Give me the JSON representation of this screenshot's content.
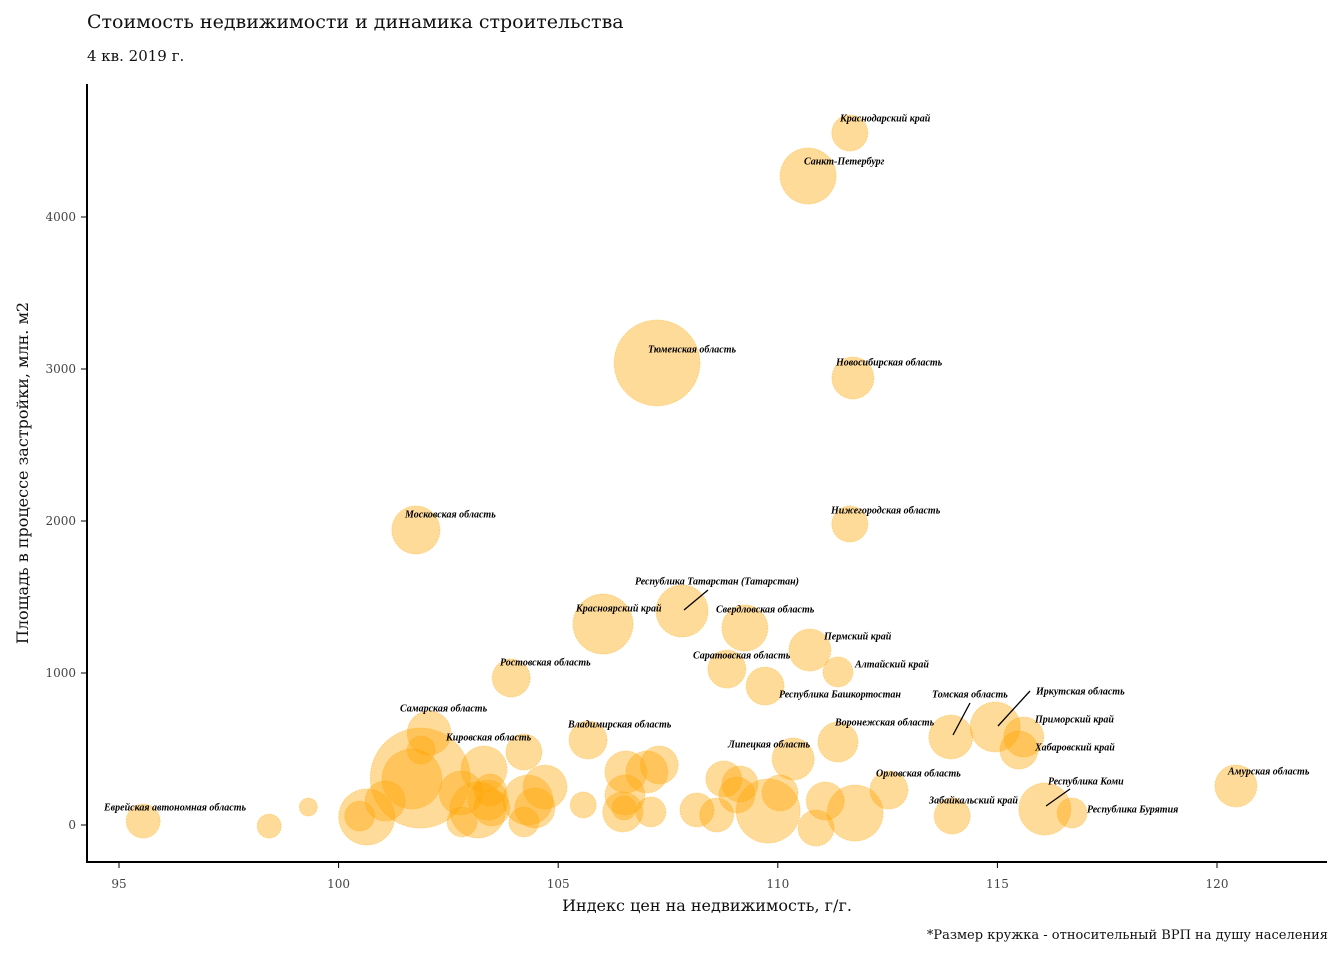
{
  "title": "Стоимость недвижимости и динамика строительства",
  "subtitle": "4 кв. 2019 г.",
  "note": "*Размер кружка - относительный ВРП на душу населения",
  "colors": {
    "bubble": "#FFA500",
    "axis": "#000000"
  },
  "chart_data": {
    "type": "scatter",
    "xlabel": "Индекс цен на недвижимость, г/г.",
    "ylabel": "Площадь в процессе застройки, млн. м2",
    "xlim": [
      94.3,
      122.5
    ],
    "ylim": [
      -250,
      4850
    ],
    "xticks": [
      95,
      100,
      105,
      110,
      115,
      120
    ],
    "yticks": [
      0,
      1000,
      2000,
      3000,
      4000
    ],
    "grid": false,
    "size_meaning": "relative GRP per capita",
    "points": [
      {
        "name": "Краснодарский край",
        "x": 111.64,
        "y": 4553,
        "size": 0.81
      },
      {
        "name": "Санкт-Петербург",
        "x": 110.69,
        "y": 4270,
        "size": 1.96
      },
      {
        "name": "Тюменская область",
        "x": 107.25,
        "y": 3040,
        "size": 4.6
      },
      {
        "name": "Новосибирская область",
        "x": 111.71,
        "y": 2941,
        "size": 1.1
      },
      {
        "name": "Московская область",
        "x": 101.76,
        "y": 1941,
        "size": 1.44
      },
      {
        "name": "Нижегородская область",
        "x": 111.64,
        "y": 1980,
        "size": 0.81
      },
      {
        "name": "Республика Татарстан (Татарстан)",
        "x": 107.82,
        "y": 1408,
        "size": 1.69
      },
      {
        "name": "Красноярский край",
        "x": 106.02,
        "y": 1322,
        "size": 2.25
      },
      {
        "name": "Свердловская область",
        "x": 109.25,
        "y": 1296,
        "size": 1.32
      },
      {
        "name": "Пермский край",
        "x": 110.73,
        "y": 1151,
        "size": 1.1
      },
      {
        "name": "Алтайский край",
        "x": 111.37,
        "y": 1007,
        "size": 0.56
      },
      {
        "name": "Саратовская область",
        "x": 108.84,
        "y": 1026,
        "size": 0.9
      },
      {
        "name": "Республика Башкортостан",
        "x": 109.71,
        "y": 914,
        "size": 0.9
      },
      {
        "name": "Ростовская область",
        "x": 103.93,
        "y": 967,
        "size": 0.9
      },
      {
        "name": "Самарская область",
        "x": 102.06,
        "y": 605,
        "size": 1.2
      },
      {
        "name": "Кировская область",
        "x": 104.22,
        "y": 480,
        "size": 0.81
      },
      {
        "name": "Владимирская область",
        "x": 105.68,
        "y": 559,
        "size": 0.9
      },
      {
        "name": "Липецкая область",
        "x": 110.35,
        "y": 434,
        "size": 1.1
      },
      {
        "name": "Воронежская область",
        "x": 111.37,
        "y": 546,
        "size": 1.0
      },
      {
        "name": "Томская область",
        "x": 113.94,
        "y": 579,
        "size": 1.2
      },
      {
        "name": "Иркутская область",
        "x": 114.95,
        "y": 645,
        "size": 1.56
      },
      {
        "name": "Приморский край",
        "x": 115.6,
        "y": 579,
        "size": 1.0
      },
      {
        "name": "Хабаровский край",
        "x": 115.49,
        "y": 493,
        "size": 0.9
      },
      {
        "name": "Амурская область",
        "x": 120.43,
        "y": 257,
        "size": 1.1
      },
      {
        "name": "Орловская область",
        "x": 112.53,
        "y": 230,
        "size": 0.9
      },
      {
        "name": "Забайкальский край",
        "x": 113.97,
        "y": 59,
        "size": 0.81
      },
      {
        "name": "Республика Коми",
        "x": 116.08,
        "y": 105,
        "size": 1.69
      },
      {
        "name": "Республика Бурятия",
        "x": 116.7,
        "y": 79,
        "size": 0.56
      },
      {
        "name": "Еврейская автономная область",
        "x": 95.55,
        "y": 26,
        "size": 0.72
      },
      {
        "name": "",
        "x": 98.42,
        "y": -7,
        "size": 0.36
      },
      {
        "name": "",
        "x": 99.31,
        "y": 118,
        "size": 0.2
      },
      {
        "name": "",
        "x": 100.64,
        "y": 53,
        "size": 1.96
      },
      {
        "name": "",
        "x": 100.48,
        "y": 59,
        "size": 0.56
      },
      {
        "name": "",
        "x": 101.06,
        "y": 158,
        "size": 1.0
      },
      {
        "name": "",
        "x": 101.86,
        "y": 309,
        "size": 6.25
      },
      {
        "name": "",
        "x": 101.67,
        "y": 303,
        "size": 2.25
      },
      {
        "name": "",
        "x": 101.88,
        "y": 493,
        "size": 0.49
      },
      {
        "name": "",
        "x": 102.79,
        "y": 211,
        "size": 1.2
      },
      {
        "name": "",
        "x": 102.81,
        "y": 20,
        "size": 0.56
      },
      {
        "name": "",
        "x": 103.31,
        "y": 368,
        "size": 1.32
      },
      {
        "name": "",
        "x": 103.17,
        "y": 99,
        "size": 1.96
      },
      {
        "name": "",
        "x": 103.45,
        "y": 230,
        "size": 0.64
      },
      {
        "name": "",
        "x": 103.4,
        "y": 164,
        "size": 1.0
      },
      {
        "name": "",
        "x": 103.49,
        "y": 112,
        "size": 0.81
      },
      {
        "name": "",
        "x": 104.22,
        "y": 20,
        "size": 0.56
      },
      {
        "name": "",
        "x": 104.31,
        "y": 164,
        "size": 1.56
      },
      {
        "name": "",
        "x": 104.7,
        "y": 250,
        "size": 1.2
      },
      {
        "name": "",
        "x": 104.47,
        "y": 112,
        "size": 1.0
      },
      {
        "name": "",
        "x": 105.57,
        "y": 132,
        "size": 0.42
      },
      {
        "name": "",
        "x": 106.54,
        "y": 349,
        "size": 1.1
      },
      {
        "name": "",
        "x": 106.52,
        "y": 197,
        "size": 1.0
      },
      {
        "name": "",
        "x": 106.47,
        "y": 86,
        "size": 1.0
      },
      {
        "name": "",
        "x": 106.5,
        "y": 112,
        "size": 0.36
      },
      {
        "name": "",
        "x": 107.11,
        "y": 86,
        "size": 0.56
      },
      {
        "name": "",
        "x": 107.02,
        "y": 349,
        "size": 1.1
      },
      {
        "name": "",
        "x": 107.3,
        "y": 395,
        "size": 0.9
      },
      {
        "name": "",
        "x": 108.16,
        "y": 99,
        "size": 0.72
      },
      {
        "name": "",
        "x": 108.61,
        "y": 66,
        "size": 0.72
      },
      {
        "name": "",
        "x": 108.77,
        "y": 303,
        "size": 0.81
      },
      {
        "name": "",
        "x": 109.14,
        "y": 270,
        "size": 0.81
      },
      {
        "name": "",
        "x": 109.07,
        "y": 197,
        "size": 0.81
      },
      {
        "name": "",
        "x": 109.78,
        "y": 92,
        "size": 2.56
      },
      {
        "name": "",
        "x": 110.05,
        "y": 211,
        "size": 0.81
      },
      {
        "name": "",
        "x": 110.87,
        "y": -20,
        "size": 0.81
      },
      {
        "name": "",
        "x": 111.08,
        "y": 158,
        "size": 0.9
      },
      {
        "name": "",
        "x": 111.76,
        "y": 79,
        "size": 1.96
      }
    ]
  }
}
